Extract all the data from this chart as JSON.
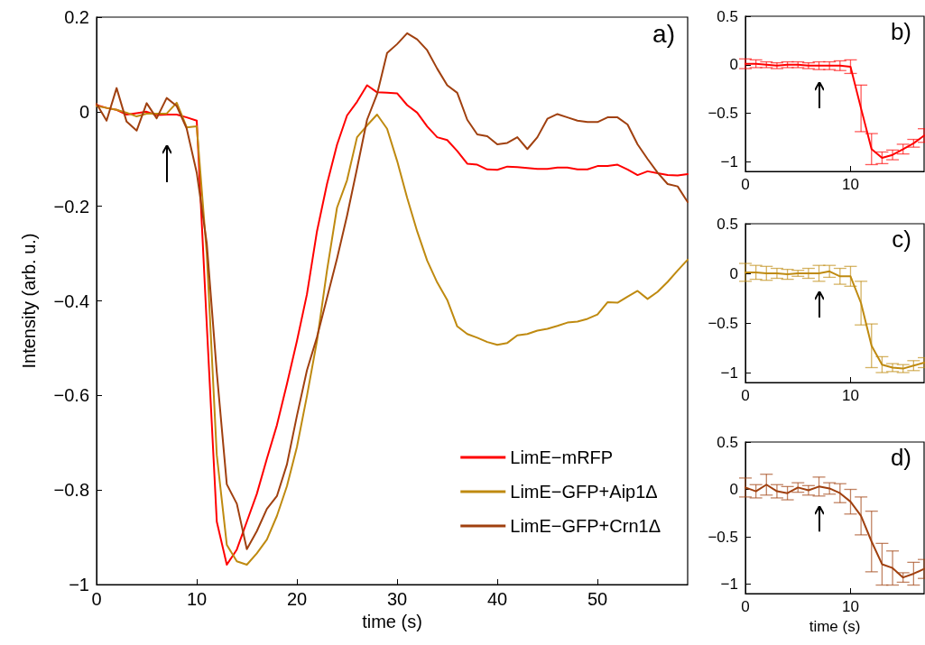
{
  "chart_data": [
    {
      "type": "line",
      "xlabel": "time (s)",
      "ylabel": "Intensity (arb. u.)",
      "annotations": [
        "a)"
      ],
      "x": [
        0,
        1,
        2,
        3,
        4,
        5,
        6,
        7,
        8,
        9,
        10,
        11,
        12,
        13,
        14,
        15,
        16,
        17,
        18,
        19,
        20,
        21,
        22,
        23,
        24,
        25,
        26,
        27,
        28,
        29,
        30,
        31,
        32,
        33,
        34,
        35,
        36,
        37,
        38,
        39,
        40,
        41,
        42,
        43,
        44,
        45,
        46,
        47,
        48,
        49,
        50,
        51,
        52,
        53,
        54,
        55,
        56,
        57,
        58,
        59
      ],
      "series": [
        {
          "name": "LimE−mRFP",
          "color": "#ff0000",
          "values": [
            0.014,
            0.008,
            0.004,
            -0.006,
            -0.003,
            0,
            -0.007,
            -0.006,
            -0.006,
            -0.012,
            -0.019,
            -0.45,
            -0.867,
            -0.958,
            -0.926,
            -0.867,
            -0.808,
            -0.734,
            -0.663,
            -0.576,
            -0.485,
            -0.386,
            -0.253,
            -0.153,
            -0.07,
            -0.008,
            0.021,
            0.056,
            0.041,
            0.04,
            0.039,
            0.014,
            -0.002,
            -0.031,
            -0.054,
            -0.06,
            -0.083,
            -0.11,
            -0.112,
            -0.122,
            -0.123,
            -0.116,
            -0.117,
            -0.119,
            -0.121,
            -0.121,
            -0.118,
            -0.118,
            -0.122,
            -0.122,
            -0.115,
            -0.115,
            -0.112,
            -0.122,
            -0.134,
            -0.126,
            -0.13,
            -0.134,
            -0.135,
            -0.132
          ]
        },
        {
          "name": "LimE−GFP+Aip1Δ",
          "color": "#bf8a10",
          "values": [
            0.012,
            0.008,
            0.004,
            -0.002,
            -0.01,
            -0.004,
            -0.004,
            -0.004,
            0.019,
            -0.033,
            -0.031,
            -0.3,
            -0.726,
            -0.916,
            -0.951,
            -0.958,
            -0.934,
            -0.905,
            -0.855,
            -0.792,
            -0.709,
            -0.601,
            -0.485,
            -0.336,
            -0.203,
            -0.145,
            -0.054,
            -0.029,
            -0.006,
            -0.036,
            -0.104,
            -0.182,
            -0.253,
            -0.315,
            -0.361,
            -0.398,
            -0.454,
            -0.47,
            -0.478,
            -0.487,
            -0.493,
            -0.489,
            -0.473,
            -0.47,
            -0.463,
            -0.459,
            -0.453,
            -0.446,
            -0.444,
            -0.438,
            -0.429,
            -0.403,
            -0.404,
            -0.391,
            -0.379,
            -0.396,
            -0.381,
            -0.36,
            -0.336,
            -0.313
          ]
        },
        {
          "name": "LimE−GFP+Crn1Δ",
          "color": "#a0400f",
          "values": [
            0.017,
            -0.019,
            0.05,
            -0.021,
            -0.04,
            0.018,
            -0.014,
            0.029,
            0.012,
            -0.036,
            -0.129,
            -0.278,
            -0.551,
            -0.788,
            -0.829,
            -0.925,
            -0.887,
            -0.84,
            -0.813,
            -0.746,
            -0.643,
            -0.547,
            -0.477,
            -0.394,
            -0.311,
            -0.22,
            -0.12,
            -0.017,
            0.037,
            0.124,
            0.143,
            0.166,
            0.153,
            0.13,
            0.091,
            0.056,
            0.04,
            -0.017,
            -0.048,
            -0.052,
            -0.069,
            -0.066,
            -0.054,
            -0.079,
            -0.054,
            -0.015,
            -0.005,
            -0.012,
            -0.019,
            -0.022,
            -0.022,
            -0.012,
            -0.012,
            -0.027,
            -0.069,
            -0.1,
            -0.129,
            -0.153,
            -0.158,
            -0.191
          ]
        }
      ],
      "xlim": [
        0,
        59
      ],
      "xticks": [
        0,
        10,
        20,
        30,
        40,
        50
      ],
      "ylim": [
        -1,
        0.2
      ],
      "yticks": [
        -1,
        -0.8,
        -0.6,
        -0.4,
        -0.2,
        0,
        0.2
      ],
      "legend": "bottom right",
      "grid": false,
      "marker": "none",
      "line_style": "solid"
    },
    {
      "type": "line",
      "annotations": [
        "b)"
      ],
      "x": [
        0,
        1,
        2,
        3,
        4,
        5,
        6,
        7,
        8,
        9,
        10,
        11,
        12,
        13,
        14,
        15,
        16,
        17
      ],
      "series": [
        {
          "color": "#ff0000",
          "values": [
            0.01,
            0.01,
            0,
            -0.01,
            0,
            0,
            -0.01,
            -0.01,
            -0.01,
            -0.01,
            -0.02,
            -0.45,
            -0.87,
            -0.96,
            -0.93,
            -0.87,
            -0.81,
            -0.73
          ],
          "errors": [
            0.05,
            0.04,
            0.03,
            0.03,
            0.03,
            0.03,
            0.03,
            0.04,
            0.04,
            0.05,
            0.07,
            0.24,
            0.16,
            0.06,
            0.05,
            0.05,
            0.04,
            0.07
          ]
        }
      ],
      "xlim": [
        0,
        17
      ],
      "xticks": [
        0,
        10
      ],
      "ylim": [
        -1.1,
        0.5
      ],
      "yticks": [
        -1,
        -0.5,
        0,
        0.5
      ],
      "grid": false,
      "marker": "none",
      "line_style": "solid"
    },
    {
      "type": "line",
      "annotations": [
        "c)"
      ],
      "x": [
        0,
        1,
        2,
        3,
        4,
        5,
        6,
        7,
        8,
        9,
        10,
        11,
        12,
        13,
        14,
        15,
        16,
        17
      ],
      "series": [
        {
          "color": "#bf8a10",
          "values": [
            0.01,
            0.01,
            0,
            0,
            -0.01,
            0,
            0,
            0,
            0.02,
            -0.03,
            -0.03,
            -0.3,
            -0.73,
            -0.92,
            -0.95,
            -0.96,
            -0.93,
            -0.9
          ],
          "errors": [
            0.09,
            0.07,
            0.07,
            0.05,
            0.05,
            0.03,
            0.05,
            0.08,
            0.06,
            0.08,
            0.1,
            0.22,
            0.22,
            0.08,
            0.04,
            0.04,
            0.05,
            0.05
          ]
        }
      ],
      "xlim": [
        0,
        17
      ],
      "xticks": [
        0,
        10
      ],
      "ylim": [
        -1.1,
        0.5
      ],
      "yticks": [
        -1,
        -0.5,
        0,
        0.5
      ],
      "grid": false,
      "marker": "none",
      "line_style": "solid"
    },
    {
      "type": "line",
      "xlabel": "time (s)",
      "annotations": [
        "d)"
      ],
      "x": [
        0,
        1,
        2,
        3,
        4,
        5,
        6,
        7,
        8,
        9,
        10,
        11,
        12,
        13,
        14,
        15,
        16,
        17
      ],
      "series": [
        {
          "color": "#a0400f",
          "values": [
            0.02,
            -0.02,
            0.05,
            -0.02,
            -0.04,
            0.02,
            -0.01,
            0.03,
            0.01,
            -0.04,
            -0.13,
            -0.28,
            -0.55,
            -0.79,
            -0.83,
            -0.93,
            -0.89,
            -0.84
          ],
          "errors": [
            0.1,
            0.07,
            0.11,
            0.07,
            0.07,
            0.05,
            0.05,
            0.1,
            0.06,
            0.1,
            0.13,
            0.2,
            0.32,
            0.22,
            0.18,
            0.05,
            0.12,
            0.1
          ]
        }
      ],
      "xlim": [
        0,
        17
      ],
      "xticks": [
        0,
        10
      ],
      "ylim": [
        -1.1,
        0.5
      ],
      "yticks": [
        -1,
        -0.5,
        0,
        0.5
      ],
      "grid": false,
      "marker": "none",
      "line_style": "solid"
    }
  ]
}
